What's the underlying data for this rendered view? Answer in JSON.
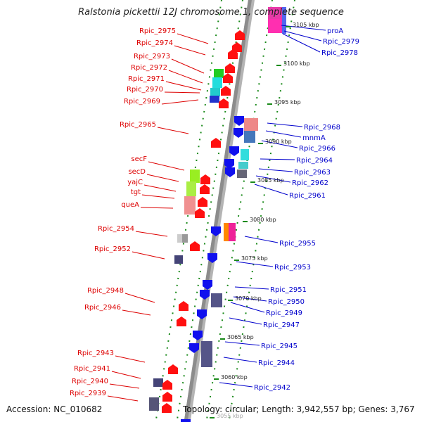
{
  "title": "Ralstonia pickettii 12J chromosome 1, complete sequence",
  "footer": {
    "accession": "Accession: NC_010682",
    "summary": "Topology: circular; Length: 3,942,557 bp; Genes: 3,767"
  },
  "colors": {
    "forward_label": "#dd0000",
    "reverse_label": "#0000cc",
    "forward_arrow": "#ff1010",
    "reverse_arrow": "#1010ee",
    "backbone": "#8c8c8c",
    "dotted_guide": "#1a8a1a"
  },
  "scale_ticks": [
    "3105 kbp",
    "3100 kbp",
    "3095 kbp",
    "3090 kbp",
    "3085 kbp",
    "3080 kbp",
    "3075 kbp",
    "3070 kbp",
    "3065 kbp",
    "3060 kbp",
    "3055 kbp"
  ],
  "left_labels": [
    "Rpic_2975",
    "Rpic_2974",
    "Rpic_2973",
    "Rpic_2972",
    "Rpic_2971",
    "Rpic_2970",
    "Rpic_2969",
    "Rpic_2965",
    "secF",
    "secD",
    "yajC",
    "tgt",
    "queA",
    "Rpic_2954",
    "Rpic_2952",
    "Rpic_2948",
    "Rpic_2946",
    "Rpic_2943",
    "Rpic_2941",
    "Rpic_2940",
    "Rpic_2939"
  ],
  "right_labels": [
    "proA",
    "Rpic_2979",
    "Rpic_2978",
    "Rpic_2968",
    "mnmA",
    "Rpic_2966",
    "Rpic_2964",
    "Rpic_2963",
    "Rpic_2962",
    "Rpic_2961",
    "Rpic_2955",
    "Rpic_2953",
    "Rpic_2951",
    "Rpic_2950",
    "Rpic_2949",
    "Rpic_2947",
    "Rpic_2945",
    "Rpic_2944",
    "Rpic_2942"
  ]
}
